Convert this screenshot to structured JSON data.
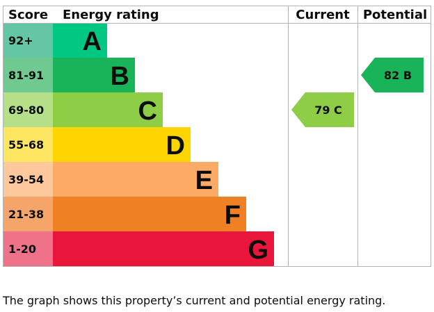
{
  "chart_data": {
    "type": "bar",
    "headers": {
      "score": "Score",
      "rating": "Energy rating",
      "current": "Current",
      "potential": "Potential"
    },
    "bands": [
      {
        "letter": "A",
        "score": "92+",
        "color": "#00c781",
        "score_color": "#65c6a6"
      },
      {
        "letter": "B",
        "score": "81-91",
        "color": "#19b459",
        "score_color": "#6fca92"
      },
      {
        "letter": "C",
        "score": "69-80",
        "color": "#8dce46",
        "score_color": "#b6e088"
      },
      {
        "letter": "D",
        "score": "55-68",
        "color": "#ffd500",
        "score_color": "#ffe662"
      },
      {
        "letter": "E",
        "score": "39-54",
        "color": "#fcaa65",
        "score_color": "#fdc99c"
      },
      {
        "letter": "F",
        "score": "21-38",
        "color": "#ef8023",
        "score_color": "#f5a56a"
      },
      {
        "letter": "G",
        "score": "1-20",
        "color": "#e9153b",
        "score_color": "#f0728a"
      }
    ],
    "current": {
      "value": 79,
      "band": "C",
      "label": "79 C"
    },
    "potential": {
      "value": 82,
      "band": "B",
      "label": "82 B"
    }
  },
  "caption": "The graph shows this property’s current and potential energy rating."
}
